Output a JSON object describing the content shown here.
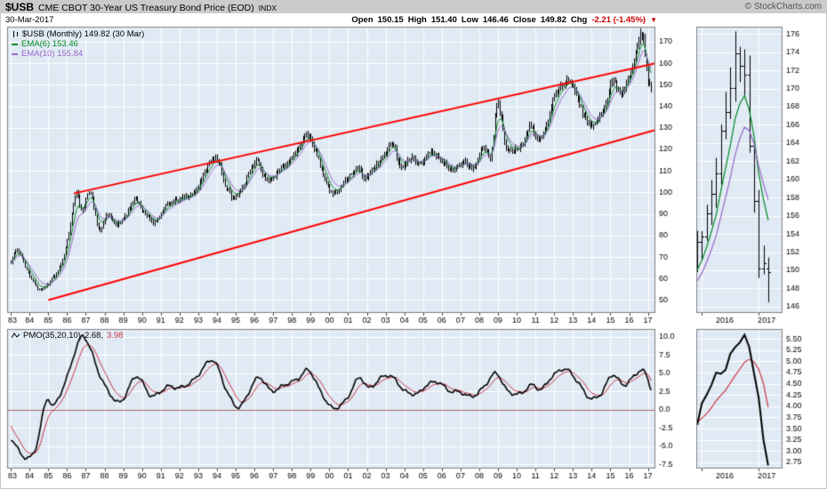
{
  "header": {
    "symbol": "$USB",
    "title": "CME CBOT 30-Year US Treasury Bond Price (EOD)",
    "exchange": "INDX",
    "copyright": "© StockCharts.com",
    "date": "30-Mar-2017",
    "quote": {
      "open_label": "Open",
      "open_value": "150.15",
      "high_label": "High",
      "high_value": "151.40",
      "low_label": "Low",
      "low_value": "146.46",
      "close_label": "Close",
      "close_value": "149.82",
      "chg_label": "Chg",
      "chg_value": "-2.21 (-1.45%)"
    }
  },
  "icons": {
    "down_arrow": "▼"
  },
  "legend_main": {
    "series": "$USB (Monthly) 149.82 (30 Mar)",
    "ema6": "EMA(6) 153.46",
    "ema10": "EMA(10) 155.84"
  },
  "legend_pmo": {
    "name": "PMO(35,20,10)",
    "value": "2.68,",
    "signal": "3.98"
  },
  "colors": {
    "panel_bg": "#e0eaf4",
    "grid": "#ffffff",
    "border": "#808080",
    "bars": "#000000",
    "ema6": "#008822",
    "ema10": "#9966cc",
    "channel_red": "#ff0000",
    "pmo_line": "#000000",
    "pmo_signal": "#cc3344",
    "zero_line": "#aa6666",
    "negative": "#cc0000"
  },
  "chart_data": [
    {
      "id": "price-main",
      "type": "bar",
      "title": "$USB CME CBOT 30-Year US Treasury Bond Price (EOD), Monthly OHLC bars 1983-2017",
      "x_domain": [
        1982.8,
        2017.4
      ],
      "x_tick_years": [
        1983,
        1984,
        1985,
        1986,
        1987,
        1988,
        1989,
        1990,
        1991,
        1992,
        1993,
        1994,
        1995,
        1996,
        1997,
        1998,
        1999,
        2000,
        2001,
        2002,
        2003,
        2004,
        2005,
        2006,
        2007,
        2008,
        2009,
        2010,
        2011,
        2012,
        2013,
        2014,
        2015,
        2016,
        2017
      ],
      "x_tick_labels": [
        "83",
        "84",
        "85",
        "86",
        "87",
        "88",
        "89",
        "90",
        "91",
        "92",
        "93",
        "94",
        "95",
        "96",
        "97",
        "98",
        "99",
        "00",
        "01",
        "02",
        "03",
        "04",
        "05",
        "06",
        "07",
        "08",
        "09",
        "10",
        "11",
        "12",
        "13",
        "14",
        "15",
        "16",
        "17"
      ],
      "y_domain": [
        44,
        177
      ],
      "y_ticks": [
        170,
        160,
        150,
        140,
        130,
        120,
        110,
        100,
        90,
        80,
        70,
        60,
        50
      ],
      "price_anchors": [
        [
          1983.0,
          68
        ],
        [
          1983.35,
          73
        ],
        [
          1983.9,
          63
        ],
        [
          1984.55,
          55
        ],
        [
          1985.2,
          60
        ],
        [
          1985.7,
          67
        ],
        [
          1986.1,
          82
        ],
        [
          1986.45,
          99
        ],
        [
          1986.8,
          92
        ],
        [
          1987.2,
          100
        ],
        [
          1987.7,
          83
        ],
        [
          1988.1,
          90
        ],
        [
          1988.6,
          85
        ],
        [
          1989.1,
          89
        ],
        [
          1989.6,
          97
        ],
        [
          1990.0,
          92
        ],
        [
          1990.7,
          86
        ],
        [
          1991.3,
          94
        ],
        [
          1992.0,
          97
        ],
        [
          1992.6,
          99
        ],
        [
          1993.0,
          103
        ],
        [
          1993.9,
          117
        ],
        [
          1994.5,
          102
        ],
        [
          1995.0,
          98
        ],
        [
          1995.8,
          110
        ],
        [
          1996.1,
          115
        ],
        [
          1996.6,
          106
        ],
        [
          1997.2,
          109
        ],
        [
          1997.8,
          114
        ],
        [
          1998.3,
          120
        ],
        [
          1998.8,
          127
        ],
        [
          1999.5,
          113
        ],
        [
          2000.1,
          100
        ],
        [
          2000.8,
          105
        ],
        [
          2001.5,
          111
        ],
        [
          2001.9,
          107
        ],
        [
          2002.5,
          113
        ],
        [
          2003.0,
          119
        ],
        [
          2003.4,
          122
        ],
        [
          2003.75,
          112
        ],
        [
          2004.3,
          116
        ],
        [
          2004.8,
          113
        ],
        [
          2005.4,
          119
        ],
        [
          2006.0,
          114
        ],
        [
          2006.6,
          111
        ],
        [
          2007.2,
          114
        ],
        [
          2007.7,
          112
        ],
        [
          2008.2,
          122
        ],
        [
          2008.6,
          117
        ],
        [
          2008.95,
          141
        ],
        [
          2009.4,
          122
        ],
        [
          2009.9,
          120
        ],
        [
          2010.4,
          124
        ],
        [
          2010.7,
          131
        ],
        [
          2011.1,
          125
        ],
        [
          2011.6,
          131
        ],
        [
          2011.95,
          144
        ],
        [
          2012.4,
          149
        ],
        [
          2012.7,
          152
        ],
        [
          2013.1,
          147
        ],
        [
          2013.7,
          133
        ],
        [
          2014.1,
          132
        ],
        [
          2014.7,
          139
        ],
        [
          2015.1,
          152
        ],
        [
          2015.5,
          146
        ],
        [
          2015.9,
          152
        ],
        [
          2016.1,
          157
        ],
        [
          2016.4,
          166
        ],
        [
          2016.58,
          174
        ],
        [
          2016.75,
          171
        ],
        [
          2016.92,
          156
        ],
        [
          2017.05,
          150
        ],
        [
          2017.17,
          150
        ]
      ],
      "last_bar": {
        "open": 150.15,
        "high": 151.4,
        "low": 146.46,
        "close": 149.82
      },
      "overlays": [
        {
          "name": "EMA(6)",
          "period": 6,
          "color": "#008822",
          "last": 153.46
        },
        {
          "name": "EMA(10)",
          "period": 10,
          "color": "#9966cc",
          "last": 155.84
        }
      ],
      "trend_channel": {
        "color": "#ff0000",
        "lower": [
          [
            1985.0,
            50
          ],
          [
            2017.4,
            129
          ]
        ],
        "upper": [
          [
            1986.35,
            99.5
          ],
          [
            2017.4,
            160
          ]
        ]
      }
    },
    {
      "id": "price-zoom",
      "type": "bar",
      "title": "Zoom of last 15 months (2016-2017)",
      "x_domain": [
        2015.9,
        2017.42
      ],
      "x_grid_years": [
        2016,
        2017
      ],
      "x_ticks": [
        {
          "label": "2016",
          "t": 2016.4
        },
        {
          "label": "2017",
          "t": 2017.14
        }
      ],
      "y_domain": [
        145.3,
        176.8
      ],
      "y_ticks": [
        176,
        174,
        172,
        170,
        168,
        166,
        164,
        162,
        160,
        158,
        156,
        154,
        152,
        150,
        148,
        146
      ],
      "window_start": 2015.91
    },
    {
      "id": "pmo-main",
      "type": "line",
      "title": "PMO(35,20,10) 2.68, 3.98",
      "x_domain": [
        1982.8,
        2017.4
      ],
      "x_tick_years": [
        1983,
        1984,
        1985,
        1986,
        1987,
        1988,
        1989,
        1990,
        1991,
        1992,
        1993,
        1994,
        1995,
        1996,
        1997,
        1998,
        1999,
        2000,
        2001,
        2002,
        2003,
        2004,
        2005,
        2006,
        2007,
        2008,
        2009,
        2010,
        2011,
        2012,
        2013,
        2014,
        2015,
        2016,
        2017
      ],
      "x_tick_labels": [
        "83",
        "84",
        "85",
        "86",
        "87",
        "88",
        "89",
        "90",
        "91",
        "92",
        "93",
        "94",
        "95",
        "96",
        "97",
        "98",
        "99",
        "00",
        "01",
        "02",
        "03",
        "04",
        "05",
        "06",
        "07",
        "08",
        "09",
        "10",
        "11",
        "12",
        "13",
        "14",
        "15",
        "16",
        "17"
      ],
      "y_domain": [
        -8.1,
        11.1
      ],
      "y_ticks": [
        "10.0",
        "7.5",
        "5.0",
        "2.5",
        "0.0",
        "-2.5",
        "-5.0",
        "-7.5"
      ],
      "pmo_anchors": [
        [
          1983.0,
          -4.0
        ],
        [
          1983.7,
          -6.5
        ],
        [
          1984.3,
          -5.5
        ],
        [
          1984.9,
          1.2
        ],
        [
          1985.3,
          0.6
        ],
        [
          1986.0,
          4.5
        ],
        [
          1986.7,
          9.7
        ],
        [
          1987.1,
          9.2
        ],
        [
          1987.7,
          5.0
        ],
        [
          1988.4,
          1.8
        ],
        [
          1988.9,
          1.2
        ],
        [
          1989.7,
          4.6
        ],
        [
          1990.5,
          1.9
        ],
        [
          1991.4,
          3.2
        ],
        [
          1992.0,
          3.0
        ],
        [
          1992.8,
          4.2
        ],
        [
          1993.8,
          6.8
        ],
        [
          1994.6,
          2.2
        ],
        [
          1995.2,
          0.4
        ],
        [
          1996.2,
          4.4
        ],
        [
          1996.9,
          2.6
        ],
        [
          1997.6,
          3.4
        ],
        [
          1998.3,
          4.2
        ],
        [
          1998.9,
          5.4
        ],
        [
          1999.6,
          2.2
        ],
        [
          2000.2,
          0.2
        ],
        [
          2000.9,
          1.4
        ],
        [
          2001.6,
          4.4
        ],
        [
          2002.1,
          3.0
        ],
        [
          2002.9,
          4.6
        ],
        [
          2003.4,
          4.4
        ],
        [
          2004.0,
          2.6
        ],
        [
          2004.7,
          2.2
        ],
        [
          2005.2,
          3.4
        ],
        [
          2005.8,
          3.8
        ],
        [
          2006.4,
          2.6
        ],
        [
          2007.0,
          2.4
        ],
        [
          2007.6,
          1.8
        ],
        [
          2008.2,
          3.0
        ],
        [
          2008.9,
          5.0
        ],
        [
          2009.5,
          2.6
        ],
        [
          2010.2,
          2.2
        ],
        [
          2010.8,
          3.4
        ],
        [
          2011.3,
          2.8
        ],
        [
          2011.9,
          4.6
        ],
        [
          2012.6,
          5.6
        ],
        [
          2013.2,
          4.0
        ],
        [
          2013.9,
          1.6
        ],
        [
          2014.5,
          2.2
        ],
        [
          2015.1,
          4.8
        ],
        [
          2015.7,
          3.4
        ],
        [
          2016.1,
          4.2
        ],
        [
          2016.65,
          5.45
        ],
        [
          2016.95,
          4.6
        ],
        [
          2017.17,
          2.68
        ]
      ],
      "pmo_last": 2.68,
      "signal_last": 3.98,
      "line_color": "#000000",
      "signal_color": "#cc3344",
      "zero_line_color": "#aa6666"
    },
    {
      "id": "pmo-zoom",
      "type": "line",
      "title": "PMO zoom 2016-2017",
      "x_domain": [
        2015.9,
        2017.42
      ],
      "x_grid_years": [
        2016,
        2017
      ],
      "x_ticks": [
        {
          "label": "2016",
          "t": 2016.4
        },
        {
          "label": "2017",
          "t": 2017.14
        }
      ],
      "y_domain": [
        2.61,
        5.72
      ],
      "y_ticks": [
        "5.50",
        "5.25",
        "5.00",
        "4.75",
        "4.50",
        "4.25",
        "4.00",
        "3.75",
        "3.50",
        "3.25",
        "3.00",
        "2.75"
      ],
      "window_start": 2015.91
    }
  ]
}
